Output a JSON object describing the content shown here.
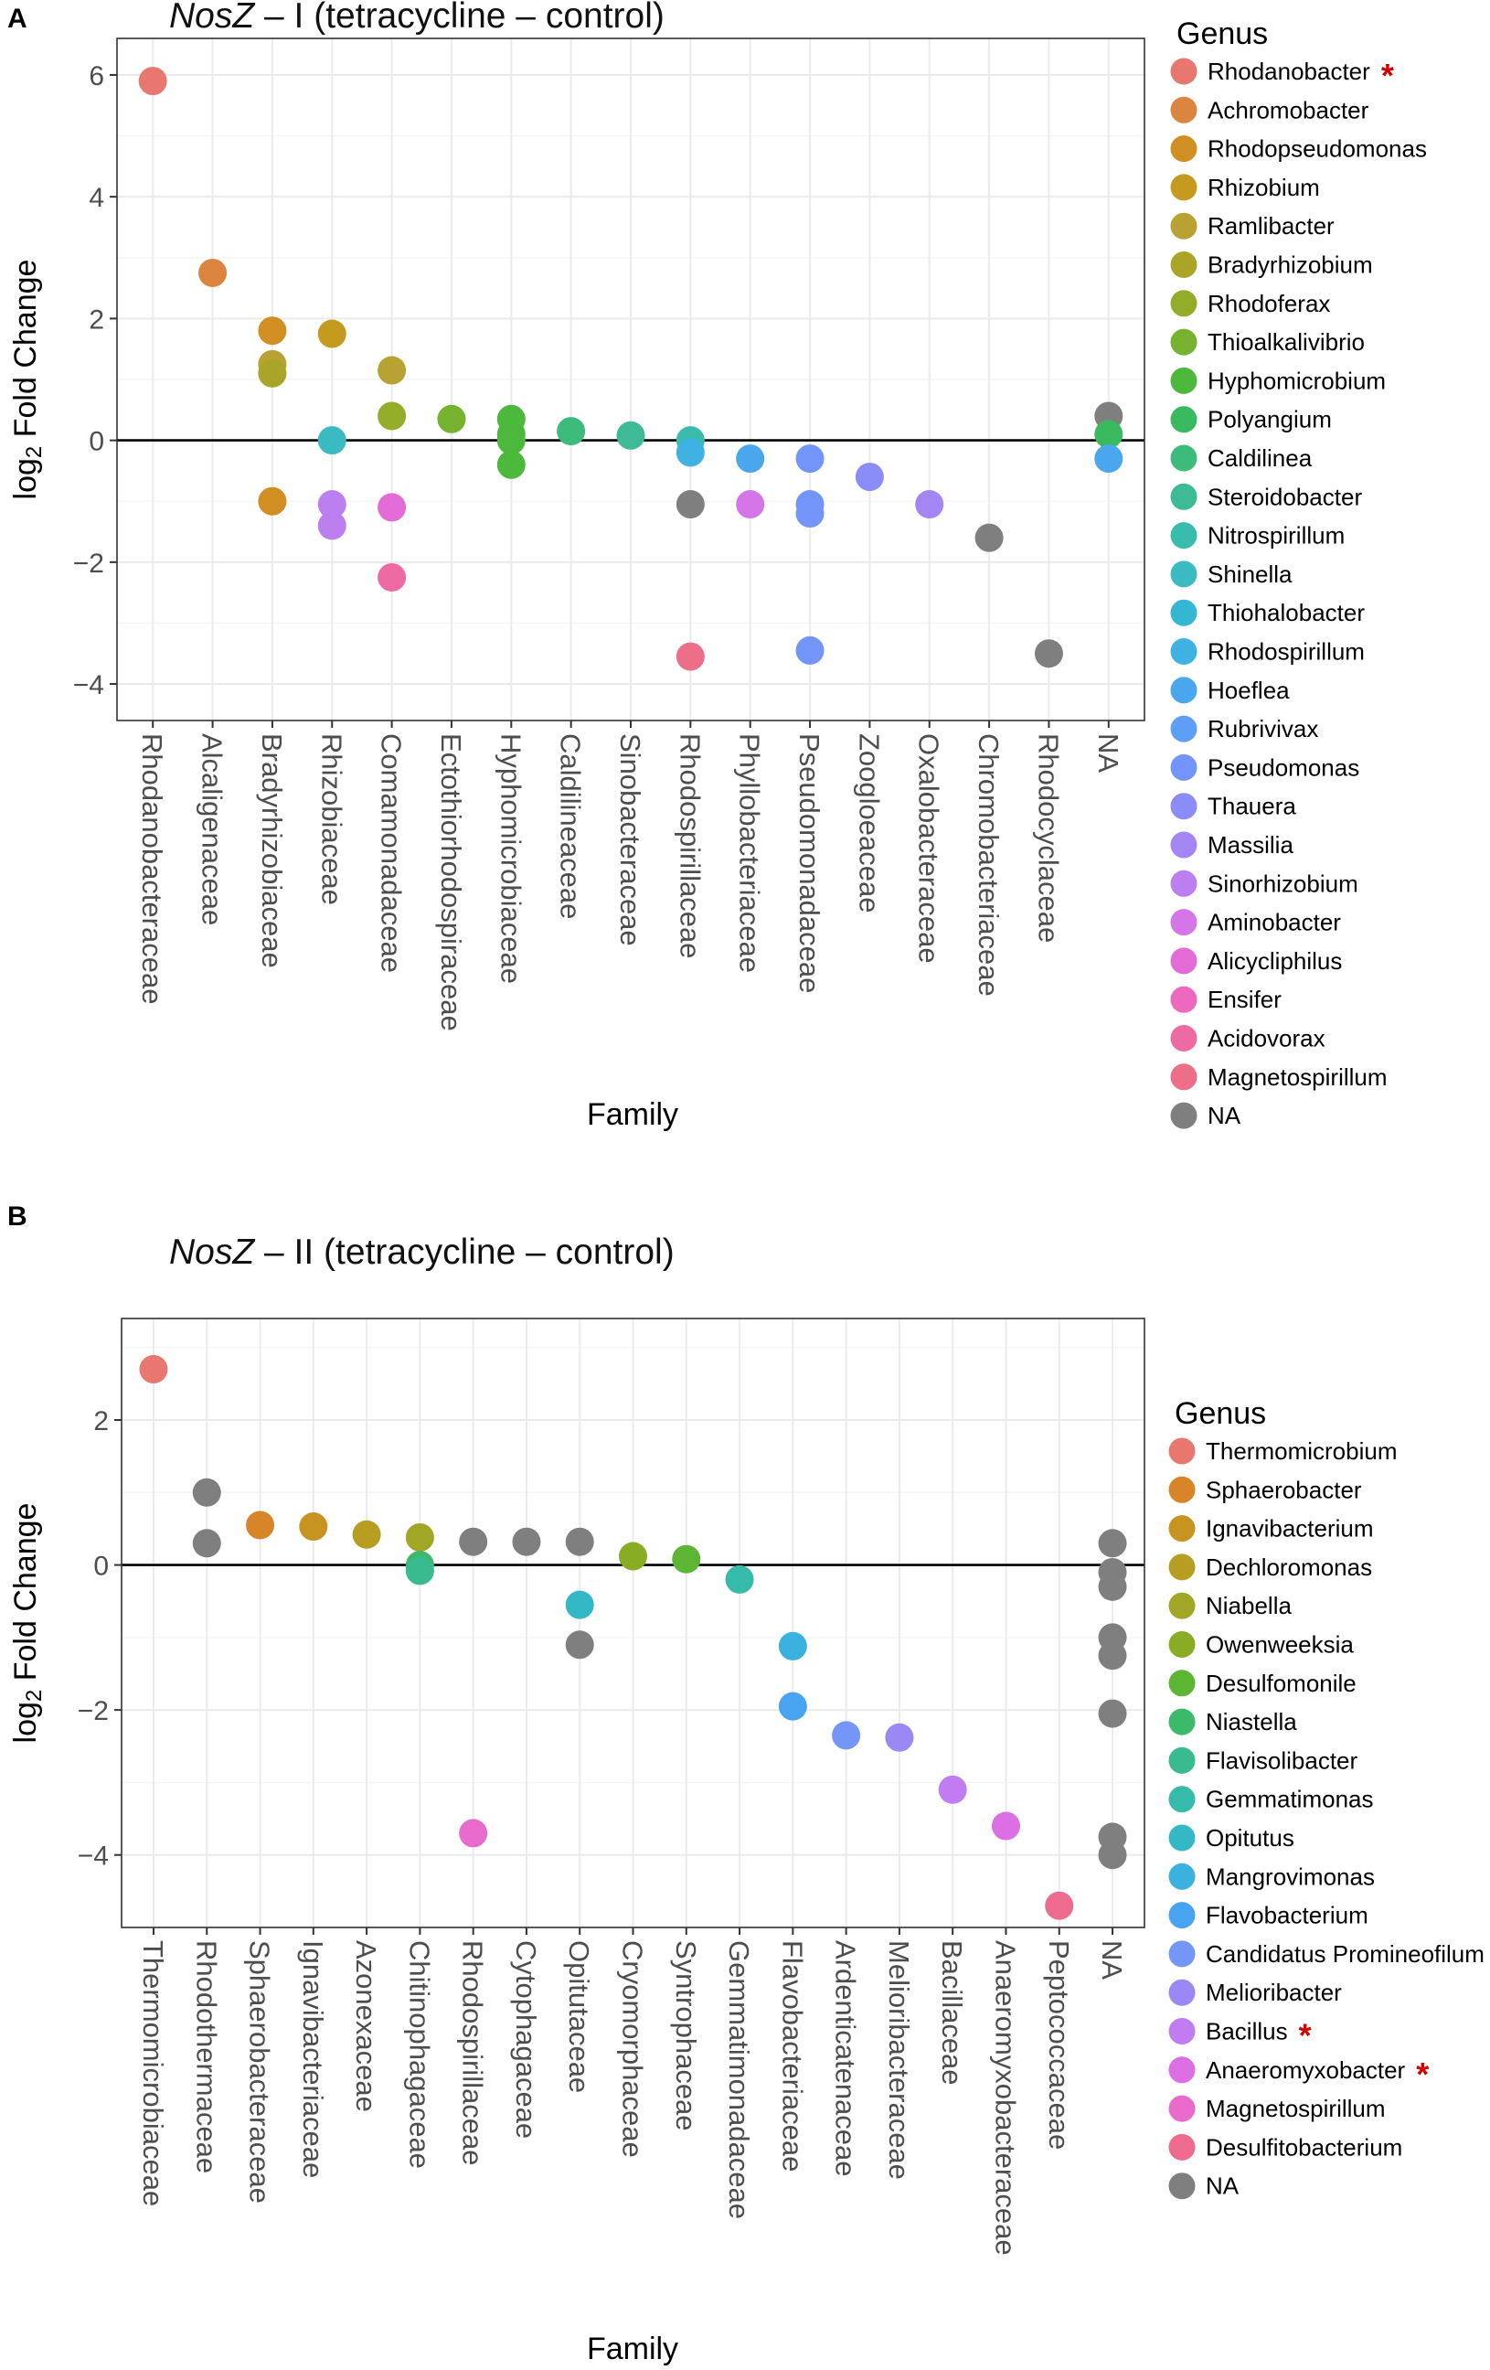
{
  "chart_data": [
    {
      "panel": "A",
      "type": "scatter",
      "title_italic": "NosZ",
      "title_rest": " – I (tetracycline – control)",
      "xlabel": "Family",
      "ylabel": "log2 Fold Change",
      "ylim": [
        -4.6,
        6.6
      ],
      "yticks": [
        -4,
        -2,
        0,
        2,
        4,
        6
      ],
      "ytick_labels": [
        "−4",
        "−2",
        "0",
        "2",
        "4",
        "6"
      ],
      "hline": 0,
      "categories": [
        "Rhodanobacteraceae",
        "Alcaligenaceae",
        "Bradyrhizobiaceae",
        "Rhizobiaceae",
        "Comamonadaceae",
        "Ectothiorhodospiraceae",
        "Hyphomicrobiaceae",
        "Caldilineaceae",
        "Sinobacteraceae",
        "Rhodospirillaceae",
        "Phyllobacteriaceae",
        "Pseudomonadaceae",
        "Zoogloeaceae",
        "Oxalobacteraceae",
        "Chromobacteriaceae",
        "Rhodocyclaceae",
        "NA"
      ],
      "legend_title": "Genus",
      "legend": [
        {
          "name": "Rhodanobacter",
          "color": "#e8776f",
          "star": "*"
        },
        {
          "name": "Achromobacter",
          "color": "#db8540",
          "star": ""
        },
        {
          "name": "Rhodopseudomonas",
          "color": "#d18e23",
          "star": ""
        },
        {
          "name": "Rhizobium",
          "color": "#c49a1f",
          "star": ""
        },
        {
          "name": "Ramlibacter",
          "color": "#b8a233",
          "star": ""
        },
        {
          "name": "Bradyrhizobium",
          "color": "#aaa528",
          "star": ""
        },
        {
          "name": "Rhodoferax",
          "color": "#93ad2a",
          "star": ""
        },
        {
          "name": "Thioalkalivibrio",
          "color": "#74b22f",
          "star": ""
        },
        {
          "name": "Hyphomicrobium",
          "color": "#4cb83c",
          "star": ""
        },
        {
          "name": "Polyangium",
          "color": "#39ba5e",
          "star": ""
        },
        {
          "name": "Caldilinea",
          "color": "#3dbb7b",
          "star": ""
        },
        {
          "name": "Steroidobacter",
          "color": "#3ebb96",
          "star": ""
        },
        {
          "name": "Nitrospirillum",
          "color": "#3abcad",
          "star": ""
        },
        {
          "name": "Shinella",
          "color": "#3bbbc1",
          "star": ""
        },
        {
          "name": "Thiohalobacter",
          "color": "#35b6d1",
          "star": ""
        },
        {
          "name": "Rhodospirillum",
          "color": "#3fb1e3",
          "star": ""
        },
        {
          "name": "Hoeflea",
          "color": "#4aa7ee",
          "star": ""
        },
        {
          "name": "Rubrivivax",
          "color": "#5d9ef6",
          "star": ""
        },
        {
          "name": "Pseudomonas",
          "color": "#7394f9",
          "star": ""
        },
        {
          "name": "Thauera",
          "color": "#8a8cf8",
          "star": ""
        },
        {
          "name": "Massilia",
          "color": "#a385f4",
          "star": ""
        },
        {
          "name": "Sinorhizobium",
          "color": "#bc7ff0",
          "star": ""
        },
        {
          "name": "Aminobacter",
          "color": "#d475e8",
          "star": ""
        },
        {
          "name": "Alicycliphilus",
          "color": "#e36bd6",
          "star": ""
        },
        {
          "name": "Ensifer",
          "color": "#ec69bd",
          "star": ""
        },
        {
          "name": "Acidovorax",
          "color": "#ee6aa2",
          "star": ""
        },
        {
          "name": "Magnetospirillum",
          "color": "#ec6e88",
          "star": ""
        },
        {
          "name": "NA",
          "color": "#7f7f7f",
          "star": ""
        }
      ],
      "points": [
        {
          "family": "Rhodanobacteraceae",
          "genus": "Rhodanobacter",
          "value": 5.9
        },
        {
          "family": "Alcaligenaceae",
          "genus": "Achromobacter",
          "value": 2.75
        },
        {
          "family": "Bradyrhizobiaceae",
          "genus": "Rhodopseudomonas",
          "value": 1.8
        },
        {
          "family": "Bradyrhizobiaceae",
          "genus": "Ramlibacter",
          "value": 1.25
        },
        {
          "family": "Bradyrhizobiaceae",
          "genus": "Bradyrhizobium",
          "value": 1.1
        },
        {
          "family": "Bradyrhizobiaceae",
          "genus": "Rhodopseudomonas",
          "value": -1.0
        },
        {
          "family": "Rhizobiaceae",
          "genus": "Rhizobium",
          "value": 1.75
        },
        {
          "family": "Rhizobiaceae",
          "genus": "Shinella",
          "value": 0.0
        },
        {
          "family": "Rhizobiaceae",
          "genus": "Sinorhizobium",
          "value": -1.05
        },
        {
          "family": "Rhizobiaceae",
          "genus": "Sinorhizobium",
          "value": -1.4
        },
        {
          "family": "Comamonadaceae",
          "genus": "Ramlibacter",
          "value": 1.15
        },
        {
          "family": "Comamonadaceae",
          "genus": "Rhodoferax",
          "value": 0.4
        },
        {
          "family": "Comamonadaceae",
          "genus": "Alicycliphilus",
          "value": -1.1
        },
        {
          "family": "Comamonadaceae",
          "genus": "Acidovorax",
          "value": -2.25
        },
        {
          "family": "Ectothiorhodospiraceae",
          "genus": "Thioalkalivibrio",
          "value": 0.35
        },
        {
          "family": "Hyphomicrobiaceae",
          "genus": "Hyphomicrobium",
          "value": 0.35
        },
        {
          "family": "Hyphomicrobiaceae",
          "genus": "Hyphomicrobium",
          "value": 0.1
        },
        {
          "family": "Hyphomicrobiaceae",
          "genus": "Hyphomicrobium",
          "value": 0.0
        },
        {
          "family": "Hyphomicrobiaceae",
          "genus": "Hyphomicrobium",
          "value": -0.4
        },
        {
          "family": "Caldilineaceae",
          "genus": "Caldilinea",
          "value": 0.15
        },
        {
          "family": "Sinobacteraceae",
          "genus": "Steroidobacter",
          "value": 0.08
        },
        {
          "family": "Rhodospirillaceae",
          "genus": "Nitrospirillum",
          "value": 0.0
        },
        {
          "family": "Rhodospirillaceae",
          "genus": "Rhodospirillum",
          "value": -0.2
        },
        {
          "family": "Rhodospirillaceae",
          "genus": "NA",
          "value": -1.05
        },
        {
          "family": "Rhodospirillaceae",
          "genus": "Magnetospirillum",
          "value": -3.55
        },
        {
          "family": "Phyllobacteriaceae",
          "genus": "Hoeflea",
          "value": -0.3
        },
        {
          "family": "Phyllobacteriaceae",
          "genus": "Aminobacter",
          "value": -1.05
        },
        {
          "family": "Pseudomonadaceae",
          "genus": "Pseudomonas",
          "value": -0.3
        },
        {
          "family": "Pseudomonadaceae",
          "genus": "Pseudomonas",
          "value": -1.05
        },
        {
          "family": "Pseudomonadaceae",
          "genus": "Pseudomonas",
          "value": -1.2
        },
        {
          "family": "Pseudomonadaceae",
          "genus": "Pseudomonas",
          "value": -3.45
        },
        {
          "family": "Zoogloeaceae",
          "genus": "Thauera",
          "value": -0.6
        },
        {
          "family": "Oxalobacteraceae",
          "genus": "Massilia",
          "value": -1.05
        },
        {
          "family": "Chromobacteriaceae",
          "genus": "NA",
          "value": -1.6
        },
        {
          "family": "Rhodocyclaceae",
          "genus": "NA",
          "value": -3.5
        },
        {
          "family": "NA",
          "genus": "NA",
          "value": 0.4
        },
        {
          "family": "NA",
          "genus": "Polyangium",
          "value": 0.1
        },
        {
          "family": "NA",
          "genus": "Hoeflea",
          "value": -0.3
        }
      ]
    },
    {
      "panel": "B",
      "type": "scatter",
      "title_italic": "NosZ",
      "title_rest": " – II (tetracycline – control)",
      "xlabel": "Family",
      "ylabel": "log2 Fold Change",
      "ylim": [
        -5.0,
        3.4
      ],
      "yticks": [
        -4,
        -2,
        0,
        2
      ],
      "ytick_labels": [
        "−4",
        "−2",
        "0",
        "2"
      ],
      "hline": 0,
      "categories": [
        "Thermomicrobiaceae",
        "Rhodothermaceae",
        "Sphaerobacteraceae",
        "Ignavibacteriaceae",
        "Azonexaceae",
        "Chitinophagaceae",
        "Rhodospirillaceae",
        "Cytophagaceae",
        "Opitutaceae",
        "Cryomorphaceae",
        "Syntrophaceae",
        "Gemmatimonadaceae",
        "Flavobacteriaceae",
        "Ardenticatenaceae",
        "Melioribacteraceae",
        "Bacillaceae",
        "Anaeromyxobacteraceae",
        "Peptococcaceae",
        "NA"
      ],
      "legend_title": "Genus",
      "legend": [
        {
          "name": "Thermomicrobium",
          "color": "#e8776f",
          "star": ""
        },
        {
          "name": "Sphaerobacter",
          "color": "#d8852a",
          "star": ""
        },
        {
          "name": "Ignavibacterium",
          "color": "#c89421",
          "star": ""
        },
        {
          "name": "Dechloromonas",
          "color": "#b79e22",
          "star": ""
        },
        {
          "name": "Niabella",
          "color": "#a2a626",
          "star": ""
        },
        {
          "name": "Owenweeksia",
          "color": "#88ad25",
          "star": ""
        },
        {
          "name": "Desulfomonile",
          "color": "#5db534",
          "star": ""
        },
        {
          "name": "Niastella",
          "color": "#3db96a",
          "star": ""
        },
        {
          "name": "Flavisolibacter",
          "color": "#3aba8f",
          "star": ""
        },
        {
          "name": "Gemmatimonas",
          "color": "#36bbaa",
          "star": ""
        },
        {
          "name": "Opitutus",
          "color": "#34b8c6",
          "star": ""
        },
        {
          "name": "Mangrovimonas",
          "color": "#3ab1de",
          "star": ""
        },
        {
          "name": "Flavobacterium",
          "color": "#48a4f0",
          "star": ""
        },
        {
          "name": "Candidatus Promineofilum",
          "color": "#7396f7",
          "star": ""
        },
        {
          "name": "Melioribacter",
          "color": "#9c88f4",
          "star": ""
        },
        {
          "name": "Bacillus",
          "color": "#c07cf0",
          "star": "*"
        },
        {
          "name": "Anaeromyxobacter",
          "color": "#db6fe3",
          "star": "*"
        },
        {
          "name": "Magnetospirillum",
          "color": "#e86acb",
          "star": ""
        },
        {
          "name": "Desulfitobacterium",
          "color": "#ec6b8f",
          "star": ""
        },
        {
          "name": "NA",
          "color": "#7f7f7f",
          "star": ""
        }
      ],
      "points": [
        {
          "family": "Thermomicrobiaceae",
          "genus": "Thermomicrobium",
          "value": 2.7
        },
        {
          "family": "Rhodothermaceae",
          "genus": "NA",
          "value": 1.0
        },
        {
          "family": "Rhodothermaceae",
          "genus": "NA",
          "value": 0.3
        },
        {
          "family": "Sphaerobacteraceae",
          "genus": "Sphaerobacter",
          "value": 0.55
        },
        {
          "family": "Ignavibacteriaceae",
          "genus": "Ignavibacterium",
          "value": 0.53
        },
        {
          "family": "Azonexaceae",
          "genus": "Dechloromonas",
          "value": 0.42
        },
        {
          "family": "Chitinophagaceae",
          "genus": "Niabella",
          "value": 0.38
        },
        {
          "family": "Chitinophagaceae",
          "genus": "Niastella",
          "value": 0.0
        },
        {
          "family": "Chitinophagaceae",
          "genus": "Flavisolibacter",
          "value": -0.08
        },
        {
          "family": "Rhodospirillaceae",
          "genus": "NA",
          "value": 0.32
        },
        {
          "family": "Rhodospirillaceae",
          "genus": "Magnetospirillum",
          "value": -3.7
        },
        {
          "family": "Cytophagaceae",
          "genus": "NA",
          "value": 0.32
        },
        {
          "family": "Opitutaceae",
          "genus": "NA",
          "value": 0.32
        },
        {
          "family": "Opitutaceae",
          "genus": "Opitutus",
          "value": -0.55
        },
        {
          "family": "Opitutaceae",
          "genus": "NA",
          "value": -1.1
        },
        {
          "family": "Cryomorphaceae",
          "genus": "Owenweeksia",
          "value": 0.12
        },
        {
          "family": "Syntrophaceae",
          "genus": "Desulfomonile",
          "value": 0.08
        },
        {
          "family": "Gemmatimonadaceae",
          "genus": "Gemmatimonas",
          "value": -0.2
        },
        {
          "family": "Flavobacteriaceae",
          "genus": "Mangrovimonas",
          "value": -1.12
        },
        {
          "family": "Flavobacteriaceae",
          "genus": "Flavobacterium",
          "value": -1.95
        },
        {
          "family": "Ardenticatenaceae",
          "genus": "Candidatus Promineofilum",
          "value": -2.35
        },
        {
          "family": "Melioribacteraceae",
          "genus": "Melioribacter",
          "value": -2.38
        },
        {
          "family": "Bacillaceae",
          "genus": "Bacillus",
          "value": -3.1
        },
        {
          "family": "Anaeromyxobacteraceae",
          "genus": "Anaeromyxobacter",
          "value": -3.6
        },
        {
          "family": "Peptococcaceae",
          "genus": "Desulfitobacterium",
          "value": -4.7
        },
        {
          "family": "NA",
          "genus": "NA",
          "value": 0.3
        },
        {
          "family": "NA",
          "genus": "NA",
          "value": -0.1
        },
        {
          "family": "NA",
          "genus": "NA",
          "value": -0.3
        },
        {
          "family": "NA",
          "genus": "NA",
          "value": -1.0
        },
        {
          "family": "NA",
          "genus": "NA",
          "value": -1.25
        },
        {
          "family": "NA",
          "genus": "NA",
          "value": -2.05
        },
        {
          "family": "NA",
          "genus": "NA",
          "value": -3.75
        },
        {
          "family": "NA",
          "genus": "NA",
          "value": -4.0
        }
      ]
    }
  ]
}
